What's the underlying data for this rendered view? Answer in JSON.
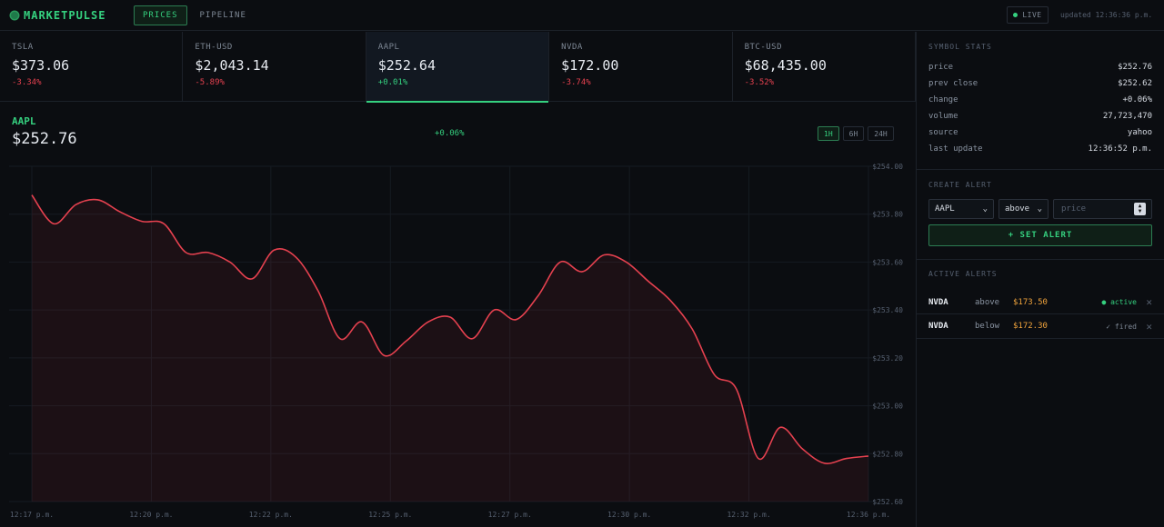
{
  "app": {
    "name": "MARKETPULSE"
  },
  "nav": {
    "items": [
      {
        "label": "PRICES"
      },
      {
        "label": "PIPELINE"
      }
    ]
  },
  "status": {
    "live_label": "LIVE",
    "updated_text": "updated 12:36:36 p.m."
  },
  "tickers": [
    {
      "symbol": "TSLA",
      "price": "$373.06",
      "change": "-3.34%",
      "dir": "neg"
    },
    {
      "symbol": "ETH-USD",
      "price": "$2,043.14",
      "change": "-5.89%",
      "dir": "neg"
    },
    {
      "symbol": "AAPL",
      "price": "$252.64",
      "change": "+0.01%",
      "dir": "pos",
      "selected": true
    },
    {
      "symbol": "NVDA",
      "price": "$172.00",
      "change": "-3.74%",
      "dir": "neg"
    },
    {
      "symbol": "BTC-USD",
      "price": "$68,435.00",
      "change": "-3.52%",
      "dir": "neg"
    }
  ],
  "chart_header": {
    "symbol": "AAPL",
    "price": "$252.76",
    "change": "+0.06%"
  },
  "ranges": [
    {
      "label": "1H",
      "active": true
    },
    {
      "label": "6H"
    },
    {
      "label": "24H"
    }
  ],
  "colors": {
    "line": "#e5414f",
    "grid": "#161b22",
    "axis_text": "#566070"
  },
  "chart_data": {
    "type": "area",
    "x_tick_labels": [
      "12:17 p.m.",
      "12:20 p.m.",
      "12:22 p.m.",
      "12:25 p.m.",
      "12:27 p.m.",
      "12:30 p.m.",
      "12:32 p.m.",
      "12:36 p.m."
    ],
    "y_tick_labels": [
      "$254.00",
      "$253.80",
      "$253.60",
      "$253.40",
      "$253.20",
      "$253.00",
      "$252.80",
      "$252.60"
    ],
    "ylim": [
      252.6,
      254.0
    ],
    "xlim_minutes_from_start": [
      0,
      19
    ],
    "x": [
      0,
      0.5,
      1,
      1.5,
      2,
      2.5,
      3,
      3.5,
      4,
      4.5,
      5,
      5.5,
      6,
      6.5,
      7,
      7.5,
      8,
      8.5,
      9,
      9.5,
      10,
      10.5,
      11,
      11.5,
      12,
      12.5,
      13,
      13.5,
      14,
      14.5,
      15,
      15.5,
      16,
      16.5,
      17,
      17.5,
      18,
      18.5,
      19
    ],
    "values": [
      253.88,
      253.76,
      253.84,
      253.86,
      253.81,
      253.77,
      253.76,
      253.64,
      253.64,
      253.6,
      253.53,
      253.65,
      253.62,
      253.48,
      253.28,
      253.35,
      253.21,
      253.27,
      253.35,
      253.37,
      253.28,
      253.4,
      253.36,
      253.46,
      253.6,
      253.56,
      253.63,
      253.6,
      253.52,
      253.44,
      253.32,
      253.13,
      253.07,
      252.78,
      252.91,
      252.82,
      252.76,
      252.78,
      252.79
    ],
    "grid": true,
    "legend": "none"
  },
  "sidebar": {
    "stats_title": "SYMBOL STATS",
    "stats": [
      {
        "key": "price",
        "value": "$252.76"
      },
      {
        "key": "prev close",
        "value": "$252.62"
      },
      {
        "key": "change",
        "value": "+0.06%"
      },
      {
        "key": "volume",
        "value": "27,723,470"
      },
      {
        "key": "source",
        "value": "yahoo"
      },
      {
        "key": "last update",
        "value": "12:36:52 p.m."
      }
    ],
    "create_title": "CREATE ALERT",
    "create_symbol": "AAPL",
    "create_direction": "above",
    "price_placeholder": "price",
    "set_button": "+ SET ALERT",
    "active_title": "ACTIVE ALERTS",
    "alerts": [
      {
        "symbol": "NVDA",
        "direction": "above",
        "price": "$173.50",
        "status": "● active",
        "state": "active"
      },
      {
        "symbol": "NVDA",
        "direction": "below",
        "price": "$172.30",
        "status": "✓ fired",
        "state": "fired"
      }
    ]
  }
}
